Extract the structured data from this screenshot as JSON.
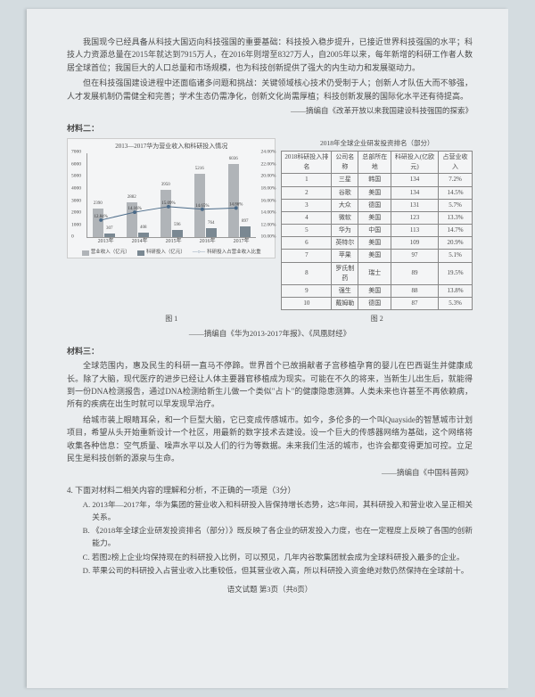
{
  "paragraphs": {
    "p1": "我国现今已经具备从科技大国迈向科技强国的重要基础：科技投入稳步提升，已接近世界科技强国的水平；科技人力资源总量在2015年就达到7915万人，在2016年则增至8327万人，自2005年以来，每年新增的科研工作者人数居全球首位；我国巨大的人口总量和市场规模，也为科技创新提供了强大的内生动力和发展驱动力。",
    "p2": "但在科技强国建设进程中还面临诸多问题和挑战：关键领域核心技术仍受制于人；创新人才队伍大而不够强，人才发展机制仍需健全和完善；学术生态仍需净化，创新文化尚需厚植；科技创新发展的国际化水平还有待提高。",
    "source1": "——摘编自《改革开放以来我国建设科技强国的探索》",
    "material2": "材料二：",
    "material3": "材料三：",
    "p3": "全球范围内，惠及民生的科研一直马不停蹄。世界首个已故捐献者子宫移植孕育的婴儿在巴西诞生并健康成长。除了大脑，现代医疗的进步已经让人体主要器官移植成为现实。可能在不久的将来，当新生儿出生后，就能得到一份DNA检测报告，通过DNA检测给新生儿做一个类似\"占卜\"的健康隐患测算。人类未来也许甚至不再依赖病，所有的疾病在出生时就可以早发现早治疗。",
    "p4": "给城市装上眼睛耳朵，和一个巨型大脑，它已变成传感城市。如今，多伦多的一个叫Quayside的智慧城市计划项目，希望从头开始重新设计一个社区，用最新的数字技术去建设。设一个巨大的传感器网络为基础，这个网络将收集各种信息：空气质量、噪声水平以及人们的行为等数据。未来我们生活的城市，也许会都变得更加可控。立足民生是科技创新的源泉与生命。",
    "source3": "——摘编自《中国科普网》",
    "question4": "4. 下面对材料二相关内容的理解和分析，不正确的一项是（3分）",
    "optA": "A. 2013年—2017年，华为集团的营业收入和科研投入皆保持增长态势，这5年间，其科研投入和营业收入呈正相关关系。",
    "optB": "B. 《2018年全球企业研发投资排名（部分）》既反映了各企业的研发投入力度，也在一定程度上反映了各国的创新能力。",
    "optC": "C. 若图2榜上企业均保持现在的科研投入比例，可以预见，几年内谷歌集团就会成为全球科研投入最多的企业。",
    "optD": "D. 苹果公司的科研投入占营业收入比重较低，但其营业收入高，所以科研投入资金绝对数仍然保持在全球前十。",
    "footer": "语文试题  第3页（共8页）"
  },
  "chart": {
    "title": "2013—2017华为营业收入和科研投入情况",
    "years": [
      "2013年",
      "2014年",
      "2015年",
      "2016年",
      "2017年"
    ],
    "revenue": [
      2390,
      2882,
      3950,
      5216,
      6036
    ],
    "rd": [
      307,
      408,
      596,
      764,
      897
    ],
    "ratio": [
      12.84,
      14.16,
      15.09,
      14.65,
      14.86
    ],
    "y_left": [
      "0",
      "1000",
      "2000",
      "3000",
      "4000",
      "5000",
      "6000",
      "7000"
    ],
    "y_right": [
      "10.00%",
      "12.00%",
      "14.00%",
      "16.00%",
      "18.00%",
      "20.00%",
      "22.00%",
      "24.00%"
    ],
    "bar_color_rev": "#b0b4b8",
    "bar_color_rd": "#7a8892",
    "line_color": "#4a6a88",
    "legend_rev": "营业收入（亿元）",
    "legend_rd": "科研投入（亿元）",
    "legend_ratio": "科研投入占营业收入比重",
    "fig1_label": "图 1",
    "fig2_label": "图 2",
    "fig_source": "——摘编自《华为2013-2017年报》、《凤凰财经》"
  },
  "table": {
    "title": "2018年全球企业研发投资排名（部分）",
    "headers": [
      "2018科研投入排名",
      "公司名称",
      "总部所在地",
      "科研投入(亿欧元)",
      "占营业收入"
    ],
    "rows": [
      [
        "1",
        "三星",
        "韩国",
        "134",
        "7.2%"
      ],
      [
        "2",
        "谷歌",
        "美国",
        "134",
        "14.5%"
      ],
      [
        "3",
        "大众",
        "德国",
        "131",
        "5.7%"
      ],
      [
        "4",
        "微软",
        "美国",
        "123",
        "13.3%"
      ],
      [
        "5",
        "华为",
        "中国",
        "113",
        "14.7%"
      ],
      [
        "6",
        "英特尔",
        "美国",
        "109",
        "20.9%"
      ],
      [
        "7",
        "苹果",
        "美国",
        "97",
        "5.1%"
      ],
      [
        "8",
        "罗氏制药",
        "瑞士",
        "89",
        "19.5%"
      ],
      [
        "9",
        "强生",
        "美国",
        "88",
        "13.8%"
      ],
      [
        "10",
        "戴姆勒",
        "德国",
        "87",
        "5.3%"
      ]
    ]
  }
}
